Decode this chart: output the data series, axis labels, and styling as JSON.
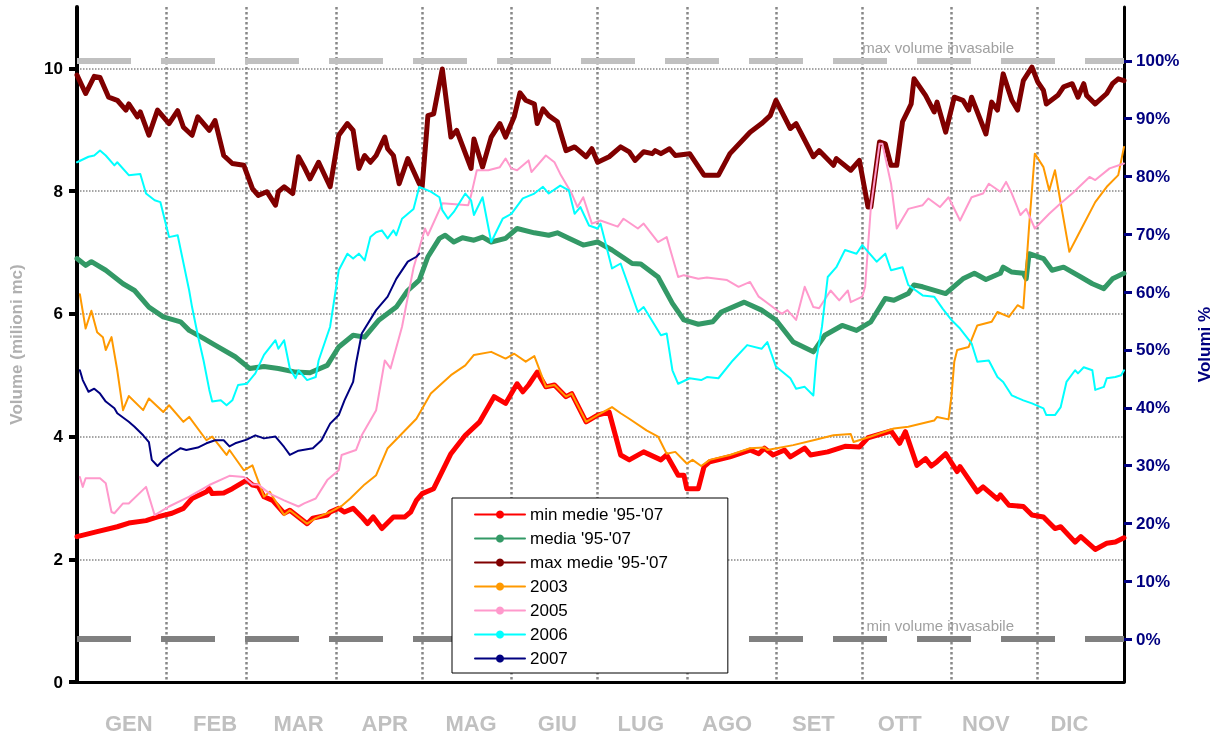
{
  "chart_data": {
    "type": "line",
    "ylabel": "Volume (milioni mc)",
    "y2label": "Volumi %",
    "xlim": [
      "--01-01",
      "--12-31"
    ],
    "xticks": [
      {
        "value": "--01-01",
        "label": null
      },
      {
        "value": "--01-19",
        "label": "GEN"
      },
      {
        "value": "--02-01",
        "label": null
      },
      {
        "value": "--02-18",
        "label": "FEB"
      },
      {
        "value": "--03-01",
        "label": null
      },
      {
        "value": "--03-19",
        "label": "MAR"
      },
      {
        "value": "--04-01",
        "label": null
      },
      {
        "value": "--04-18",
        "label": "APR"
      },
      {
        "value": "--05-01",
        "label": null
      },
      {
        "value": "--05-18",
        "label": "MAG"
      },
      {
        "value": "--06-01",
        "label": null
      },
      {
        "value": "--06-17",
        "label": "GIU"
      },
      {
        "value": "--07-01",
        "label": null
      },
      {
        "value": "--07-16",
        "label": "LUG"
      },
      {
        "value": "--08-01",
        "label": null
      },
      {
        "value": "--08-15",
        "label": "AGO"
      },
      {
        "value": "--09-01",
        "label": null
      },
      {
        "value": "--09-14",
        "label": "SET"
      },
      {
        "value": "--10-01",
        "label": null
      },
      {
        "value": "--10-14",
        "label": "OTT"
      },
      {
        "value": "--11-01",
        "label": null
      },
      {
        "value": "--11-13",
        "label": "NOV"
      },
      {
        "value": "--12-01",
        "label": null
      },
      {
        "value": "--12-12",
        "label": "DIC"
      },
      {
        "value": "--12-31",
        "label": null
      }
    ],
    "ylim": [
      0,
      11
    ],
    "yticks": [
      0,
      2,
      4,
      6,
      8,
      10
    ],
    "y2lim": [
      -7.4,
      109.3
    ],
    "y2ticks": [
      {
        "value": 0,
        "label": "0%"
      },
      {
        "value": 10,
        "label": "10%"
      },
      {
        "value": 20,
        "label": "20%"
      },
      {
        "value": 30,
        "label": "30%"
      },
      {
        "value": 40,
        "label": "40%"
      },
      {
        "value": 50,
        "label": "50%"
      },
      {
        "value": 60,
        "label": "60%"
      },
      {
        "value": 70,
        "label": "70%"
      },
      {
        "value": 80,
        "label": "80%"
      },
      {
        "value": 90,
        "label": "90%"
      },
      {
        "value": 100,
        "label": "100%"
      }
    ],
    "ref_lines": [
      {
        "axis": "y2",
        "value": 100,
        "label": "max volume invasabile",
        "color": "#c0c0c0",
        "line_style": "dashed"
      },
      {
        "axis": "y2",
        "value": 0,
        "label": "min volume invasabile",
        "color": "#808080",
        "line_style": "dashed"
      }
    ],
    "grid": true,
    "legend": "bottom",
    "marker": "none",
    "line_style": "solid",
    "series": [
      {
        "name": "min medie '95-'07",
        "color": "#ff0000",
        "x": [
          "--01-01",
          "--01-08",
          "--01-15",
          "--01-19",
          "--01-25",
          "--01-29",
          "--02-03",
          "--02-07",
          "--02-10",
          "--02-15",
          "--02-16",
          "--02-17",
          "--02-21",
          "--02-24",
          "--03-01",
          "--03-03",
          "--03-05",
          "--03-07",
          "--03-10",
          "--03-14",
          "--03-16",
          "--03-19",
          "--03-22",
          "--03-24",
          "--03-29",
          "--03-30",
          "--04-02",
          "--04-04",
          "--04-07",
          "--04-10",
          "--04-12",
          "--04-14",
          "--04-17",
          "--04-21",
          "--04-25",
          "--04-27",
          "--04-29",
          "--05-01",
          "--05-05",
          "--05-11",
          "--05-16",
          "--05-21",
          "--05-26",
          "--05-30",
          "--06-03",
          "--06-05",
          "--06-07",
          "--06-10",
          "--06-13",
          "--06-16",
          "--06-20",
          "--06-22",
          "--06-27",
          "--07-01",
          "--07-05",
          "--07-09",
          "--07-12",
          "--07-17",
          "--07-23",
          "--07-25",
          "--07-29",
          "--07-31",
          "--08-01",
          "--08-05",
          "--08-07",
          "--08-09",
          "--08-16",
          "--08-23",
          "--08-26",
          "--08-28",
          "--08-31",
          "--09-04",
          "--09-06",
          "--09-11",
          "--09-13",
          "--09-19",
          "--09-25",
          "--09-30",
          "--10-03",
          "--10-11",
          "--10-14",
          "--10-16",
          "--10-20",
          "--10-23",
          "--10-25",
          "--10-27",
          "--10-30",
          "--11-03",
          "--11-04",
          "--11-10",
          "--11-12",
          "--11-17",
          "--11-18",
          "--11-21",
          "--11-26",
          "--11-29",
          "--12-03",
          "--12-07",
          "--12-09",
          "--12-14",
          "--12-16",
          "--12-21",
          "--12-25",
          "--12-28",
          "--12-31"
        ],
        "values": [
          2.37,
          2.45,
          2.53,
          2.59,
          2.63,
          2.69,
          2.75,
          2.83,
          2.99,
          3.1,
          3.15,
          3.07,
          3.08,
          3.15,
          3.29,
          3.21,
          3.19,
          3.02,
          2.96,
          2.75,
          2.8,
          2.69,
          2.58,
          2.67,
          2.72,
          2.77,
          2.83,
          2.77,
          2.83,
          2.69,
          2.58,
          2.69,
          2.5,
          2.69,
          2.69,
          2.77,
          2.96,
          3.07,
          3.15,
          3.72,
          4.02,
          4.24,
          4.65,
          4.54,
          4.86,
          4.73,
          4.84,
          5.05,
          4.81,
          4.84,
          4.65,
          4.7,
          4.24,
          4.35,
          4.4,
          3.7,
          3.62,
          3.75,
          3.62,
          3.7,
          3.37,
          3.37,
          3.15,
          3.15,
          3.51,
          3.59,
          3.67,
          3.78,
          3.72,
          3.81,
          3.7,
          3.78,
          3.67,
          3.81,
          3.7,
          3.75,
          3.84,
          3.83,
          3.98,
          4.09,
          3.89,
          4.08,
          3.53,
          3.64,
          3.52,
          3.59,
          3.72,
          3.43,
          3.51,
          3.1,
          3.18,
          2.98,
          3.05,
          2.88,
          2.86,
          2.72,
          2.69,
          2.5,
          2.53,
          2.28,
          2.37,
          2.16,
          2.26,
          2.28,
          2.35
        ]
      },
      {
        "name": "media '95-'07",
        "color": "#339966",
        "x": [
          "--01-01",
          "--01-04",
          "--01-06",
          "--01-11",
          "--01-17",
          "--01-21",
          "--01-26",
          "--01-31",
          "--02-06",
          "--02-09",
          "--02-14",
          "--02-18",
          "--02-25",
          "--03-02",
          "--03-07",
          "--03-12",
          "--03-18",
          "--03-23",
          "--03-29",
          "--04-02",
          "--04-07",
          "--04-11",
          "--04-16",
          "--04-22",
          "--04-26",
          "--04-30",
          "--05-03",
          "--05-07",
          "--05-09",
          "--05-12",
          "--05-15",
          "--05-19",
          "--05-22",
          "--05-25",
          "--05-30",
          "--06-03",
          "--06-09",
          "--06-14",
          "--06-17",
          "--06-21",
          "--06-26",
          "--07-01",
          "--07-06",
          "--07-13",
          "--07-16",
          "--07-22",
          "--07-27",
          "--07-31",
          "--08-05",
          "--08-10",
          "--08-13",
          "--08-21",
          "--08-27",
          "--09-01",
          "--09-07",
          "--09-14",
          "--09-18",
          "--09-24",
          "--09-29",
          "--10-04",
          "--10-09",
          "--10-12",
          "--10-17",
          "--10-19",
          "--10-22",
          "--10-30",
          "--11-05",
          "--11-09",
          "--11-13",
          "--11-18",
          "--11-19",
          "--11-22",
          "--11-26",
          "--11-27",
          "--11-28",
          "--12-03",
          "--12-06",
          "--12-10",
          "--12-16",
          "--12-20",
          "--12-24",
          "--12-27",
          "--12-31"
        ],
        "values": [
          6.9,
          6.79,
          6.85,
          6.71,
          6.49,
          6.38,
          6.11,
          5.95,
          5.87,
          5.73,
          5.6,
          5.49,
          5.3,
          5.11,
          5.14,
          5.11,
          5.05,
          5.04,
          5.16,
          5.46,
          5.65,
          5.62,
          5.9,
          6.11,
          6.38,
          6.55,
          6.93,
          7.23,
          7.28,
          7.17,
          7.24,
          7.2,
          7.25,
          7.17,
          7.23,
          7.39,
          7.32,
          7.28,
          7.32,
          7.23,
          7.12,
          7.17,
          7.04,
          6.82,
          6.81,
          6.6,
          6.17,
          5.9,
          5.83,
          5.87,
          6.03,
          6.19,
          6.06,
          5.9,
          5.54,
          5.38,
          5.65,
          5.81,
          5.73,
          5.87,
          6.25,
          6.22,
          6.33,
          6.47,
          6.44,
          6.33,
          6.57,
          6.66,
          6.56,
          6.66,
          6.76,
          6.68,
          6.66,
          6.57,
          6.98,
          6.9,
          6.71,
          6.76,
          6.6,
          6.49,
          6.41,
          6.57,
          6.66
        ]
      },
      {
        "name": "max medie '95-'07",
        "color": "#800000",
        "x": [
          "--01-01",
          "--01-04",
          "--01-07",
          "--01-09",
          "--01-12",
          "--01-15",
          "--01-18",
          "--01-19",
          "--01-22",
          "--01-23",
          "--01-26",
          "--01-29",
          "--02-02",
          "--02-05",
          "--02-07",
          "--02-10",
          "--02-12",
          "--02-16",
          "--02-18",
          "--02-21",
          "--02-24",
          "--02-28",
          "--03-03",
          "--03-05",
          "--03-08",
          "--03-11",
          "--03-12",
          "--03-14",
          "--03-17",
          "--03-19",
          "--03-21",
          "--03-23",
          "--03-26",
          "--03-30",
          "--04-02",
          "--04-05",
          "--04-07",
          "--04-09",
          "--04-11",
          "--04-13",
          "--04-15",
          "--04-18",
          "--04-19",
          "--04-21",
          "--04-23",
          "--04-26",
          "--04-30",
          "--05-01",
          "--05-03",
          "--05-05",
          "--05-08",
          "--05-11",
          "--05-13",
          "--05-18",
          "--05-19",
          "--05-22",
          "--05-25",
          "--05-28",
          "--05-30",
          "--06-02",
          "--06-04",
          "--06-06",
          "--06-09",
          "--06-10",
          "--06-12",
          "--06-14",
          "--06-17",
          "--06-20",
          "--06-23",
          "--06-27",
          "--06-29",
          "--07-01",
          "--07-05",
          "--07-09",
          "--07-12",
          "--07-14",
          "--07-17",
          "--07-20",
          "--07-21",
          "--07-23",
          "--07-26",
          "--07-28",
          "--08-02",
          "--08-07",
          "--08-10",
          "--08-12",
          "--08-16",
          "--08-23",
          "--08-27",
          "--08-30",
          "--09-01",
          "--09-06",
          "--09-08",
          "--09-14",
          "--09-16",
          "--09-21",
          "--09-22",
          "--09-27",
          "--09-30",
          "--10-03",
          "--10-04",
          "--10-07",
          "--10-09",
          "--10-11",
          "--10-13",
          "--10-15",
          "--10-17",
          "--10-18",
          "--10-19",
          "--10-23",
          "--10-26",
          "--10-27",
          "--10-30",
          "--11-02",
          "--11-05",
          "--11-07",
          "--11-08",
          "--11-13",
          "--11-15",
          "--11-17",
          "--11-19",
          "--11-22",
          "--11-24",
          "--11-26",
          "--11-29",
          "--12-01",
          "--12-03",
          "--12-04",
          "--12-08",
          "--12-10",
          "--12-13",
          "--12-15",
          "--12-17",
          "--12-18",
          "--12-21",
          "--12-25",
          "--12-27",
          "--12-29",
          "--12-31"
        ],
        "values": [
          9.89,
          9.59,
          9.87,
          9.85,
          9.53,
          9.48,
          9.32,
          9.42,
          9.21,
          9.29,
          8.91,
          9.32,
          9.1,
          9.31,
          9.04,
          8.91,
          9.21,
          8.99,
          9.15,
          8.58,
          8.45,
          8.42,
          8.04,
          7.93,
          7.99,
          7.77,
          7.99,
          8.07,
          7.96,
          8.56,
          8.39,
          8.2,
          8.47,
          8.07,
          8.91,
          9.1,
          8.99,
          8.37,
          8.58,
          8.47,
          8.58,
          8.88,
          8.69,
          8.58,
          8.12,
          8.53,
          8.12,
          8.07,
          9.23,
          9.26,
          9.99,
          8.88,
          8.99,
          8.37,
          8.85,
          8.39,
          8.88,
          9.1,
          8.88,
          9.21,
          9.6,
          9.48,
          9.42,
          9.1,
          9.34,
          9.23,
          9.13,
          8.66,
          8.72,
          8.56,
          8.69,
          8.47,
          8.56,
          8.72,
          8.64,
          8.5,
          8.64,
          8.61,
          8.66,
          8.61,
          8.69,
          8.58,
          8.61,
          8.26,
          8.26,
          8.26,
          8.61,
          8.96,
          9.1,
          9.23,
          9.48,
          9.02,
          9.1,
          8.56,
          8.66,
          8.42,
          8.53,
          8.34,
          8.5,
          7.74,
          7.74,
          8.8,
          8.77,
          8.42,
          8.42,
          9.13,
          9.32,
          9.42,
          9.83,
          9.56,
          9.29,
          9.45,
          8.96,
          9.53,
          9.48,
          9.32,
          9.53,
          8.93,
          9.45,
          9.32,
          9.91,
          9.48,
          9.32,
          9.8,
          10.02,
          9.78,
          9.64,
          9.42,
          9.56,
          9.7,
          9.75,
          9.53,
          9.75,
          9.56,
          9.42,
          9.59,
          9.75,
          9.83,
          9.8
        ]
      },
      {
        "name": "2003",
        "color": "#ff9900",
        "x": [
          "--01-02",
          "--01-04",
          "--01-06",
          "--01-08",
          "--01-10",
          "--01-11",
          "--01-13",
          "--01-15",
          "--01-17",
          "--01-19",
          "--01-24",
          "--01-26",
          "--01-31",
          "--02-02",
          "--02-07",
          "--02-09",
          "--02-15",
          "--02-17",
          "--02-22",
          "--02-23",
          "--02-28",
          "--03-03",
          "--03-07",
          "--03-09",
          "--03-14",
          "--03-16",
          "--03-22",
          "--03-25",
          "--03-30",
          "--04-03",
          "--04-06",
          "--04-11",
          "--04-15",
          "--04-19",
          "--04-24",
          "--04-29",
          "--05-04",
          "--05-11",
          "--05-16",
          "--05-19",
          "--05-25",
          "--05-30",
          "--06-02",
          "--06-06",
          "--06-09",
          "--06-10",
          "--06-13",
          "--06-16",
          "--06-20",
          "--06-22",
          "--06-27",
          "--07-01",
          "--07-06",
          "--07-09",
          "--07-12",
          "--07-18",
          "--07-22",
          "--07-25",
          "--07-28",
          "--08-01",
          "--08-03",
          "--08-06",
          "--08-09",
          "--08-16",
          "--08-23",
          "--08-28",
          "--08-29",
          "--09-07",
          "--09-14",
          "--09-21",
          "--09-27",
          "--09-28",
          "--10-04",
          "--10-12",
          "--10-17",
          "--10-26",
          "--10-27",
          "--10-31",
          "--11-01",
          "--11-02",
          "--11-03",
          "--11-07",
          "--11-10",
          "--11-15",
          "--11-17",
          "--11-21",
          "--11-24",
          "--11-26",
          "--11-28",
          "--11-30",
          "--12-03",
          "--12-05",
          "--12-07",
          "--12-12",
          "--12-15",
          "--12-21",
          "--12-25",
          "--12-29",
          "--12-31"
        ],
        "values": [
          6.32,
          5.76,
          6.05,
          5.7,
          5.62,
          5.41,
          5.62,
          5.08,
          4.43,
          4.66,
          4.43,
          4.62,
          4.4,
          4.51,
          4.24,
          4.32,
          3.94,
          4.0,
          3.7,
          3.78,
          3.45,
          3.53,
          3.02,
          3.1,
          2.72,
          2.8,
          2.58,
          2.67,
          2.77,
          2.87,
          2.99,
          3.22,
          3.37,
          3.81,
          4.05,
          4.29,
          4.7,
          5.0,
          5.16,
          5.33,
          5.38,
          5.27,
          5.35,
          5.22,
          5.31,
          5.19,
          4.81,
          4.84,
          4.65,
          4.7,
          4.24,
          4.35,
          4.48,
          4.38,
          4.29,
          4.1,
          4.0,
          3.72,
          3.75,
          3.56,
          3.62,
          3.52,
          3.62,
          3.7,
          3.81,
          3.82,
          3.78,
          3.86,
          3.94,
          4.02,
          4.04,
          3.91,
          4.0,
          4.13,
          4.16,
          4.26,
          4.32,
          4.28,
          4.65,
          5.22,
          5.41,
          5.46,
          5.81,
          5.87,
          6.03,
          5.95,
          6.14,
          6.09,
          7.42,
          8.61,
          8.39,
          8.01,
          8.34,
          7.01,
          7.28,
          7.82,
          8.07,
          8.26,
          8.72
        ]
      },
      {
        "name": "2005",
        "color": "#ff99cc",
        "x": [
          "--01-02",
          "--01-03",
          "--01-04",
          "--01-09",
          "--01-11",
          "--01-13",
          "--01-14",
          "--01-17",
          "--01-19",
          "--01-25",
          "--01-28",
          "--02-02",
          "--02-09",
          "--02-16",
          "--02-23",
          "--02-28",
          "--03-03",
          "--03-05",
          "--03-09",
          "--03-14",
          "--03-19",
          "--03-21",
          "--03-25",
          "--03-29",
          "--04-02",
          "--04-03",
          "--04-08",
          "--04-10",
          "--04-15",
          "--04-18",
          "--04-20",
          "--04-24",
          "--04-28",
          "--05-02",
          "--05-03",
          "--05-08",
          "--05-17",
          "--05-18",
          "--05-20",
          "--05-24",
          "--05-28",
          "--05-30",
          "--06-01",
          "--06-03",
          "--06-07",
          "--06-08",
          "--06-13",
          "--06-16",
          "--06-18",
          "--06-22",
          "--06-24",
          "--06-26",
          "--06-29",
          "--07-02",
          "--07-08",
          "--07-10",
          "--07-15",
          "--07-17",
          "--07-22",
          "--07-25",
          "--07-29",
          "--07-31",
          "--08-05",
          "--08-08",
          "--08-15",
          "--08-19",
          "--08-23",
          "--08-26",
          "--09-03",
          "--09-05",
          "--09-08",
          "--09-11",
          "--09-14",
          "--09-16",
          "--09-20",
          "--09-23",
          "--09-26",
          "--09-27",
          "--10-01",
          "--10-02",
          "--10-04",
          "--10-07",
          "--10-08",
          "--10-11",
          "--10-13",
          "--10-15",
          "--10-17",
          "--10-22",
          "--10-24",
          "--10-28",
          "--10-31",
          "--11-04",
          "--11-08",
          "--11-12",
          "--11-14",
          "--11-18",
          "--11-20",
          "--11-22",
          "--11-25",
          "--11-27",
          "--11-30",
          "--12-05",
          "--12-09",
          "--12-13",
          "--12-19",
          "--12-21",
          "--12-26",
          "--12-31"
        ],
        "values": [
          3.34,
          3.18,
          3.32,
          3.32,
          3.24,
          2.77,
          2.75,
          2.91,
          2.91,
          3.18,
          2.72,
          2.86,
          3.02,
          3.21,
          3.36,
          3.34,
          3.22,
          3.22,
          3.07,
          2.96,
          2.86,
          2.91,
          2.99,
          3.29,
          3.45,
          3.7,
          3.78,
          4.02,
          4.43,
          5.24,
          5.11,
          5.79,
          6.75,
          7.39,
          7.28,
          7.8,
          7.77,
          7.93,
          8.34,
          8.34,
          8.39,
          8.53,
          8.37,
          8.34,
          8.5,
          8.31,
          8.58,
          8.47,
          8.28,
          7.96,
          7.74,
          7.9,
          7.47,
          7.52,
          7.42,
          7.55,
          7.39,
          7.47,
          7.17,
          7.25,
          6.6,
          6.63,
          6.57,
          6.59,
          6.55,
          6.44,
          6.52,
          6.28,
          6.0,
          6.06,
          5.9,
          6.44,
          6.11,
          6.09,
          6.38,
          6.22,
          6.38,
          6.19,
          6.28,
          6.44,
          7.74,
          8.77,
          8.77,
          8.12,
          7.39,
          7.55,
          7.71,
          7.77,
          7.88,
          7.74,
          7.9,
          7.52,
          7.9,
          7.96,
          8.12,
          7.99,
          8.15,
          7.96,
          7.61,
          7.71,
          7.39,
          7.63,
          7.8,
          7.96,
          8.23,
          8.18,
          8.37,
          8.45
        ]
      },
      {
        "name": "2006",
        "color": "#00ffff",
        "x": [
          "--01-01",
          "--01-05",
          "--01-07",
          "--01-09",
          "--01-11",
          "--01-14",
          "--01-15",
          "--01-19",
          "--01-23",
          "--01-25",
          "--01-28",
          "--01-30",
          "--02-02",
          "--02-05",
          "--02-09",
          "--02-10",
          "--02-12",
          "--02-14",
          "--02-16",
          "--02-17",
          "--02-20",
          "--02-22",
          "--02-24",
          "--02-26",
          "--03-01",
          "--03-04",
          "--03-07",
          "--03-11",
          "--03-12",
          "--03-14",
          "--03-16",
          "--03-18",
          "--03-19",
          "--03-22",
          "--03-25",
          "--03-26",
          "--03-30",
          "--04-02",
          "--04-05",
          "--04-07",
          "--04-09",
          "--04-11",
          "--04-13",
          "--04-15",
          "--04-17",
          "--04-19",
          "--04-21",
          "--04-22",
          "--04-24",
          "--04-28",
          "--04-30",
          "--05-04",
          "--05-07",
          "--05-08",
          "--05-10",
          "--05-12",
          "--05-16",
          "--05-18",
          "--05-19",
          "--05-22",
          "--05-25",
          "--05-29",
          "--06-01",
          "--06-05",
          "--06-09",
          "--06-12",
          "--06-14",
          "--06-18",
          "--06-21",
          "--06-23",
          "--06-25",
          "--06-28",
          "--07-01",
          "--07-02",
          "--07-06",
          "--07-09",
          "--07-15",
          "--07-17",
          "--07-23",
          "--07-25",
          "--07-27",
          "--07-29",
          "--08-02",
          "--08-06",
          "--08-08",
          "--08-12",
          "--08-17",
          "--08-22",
          "--08-27",
          "--08-29",
          "--09-01",
          "--09-06",
          "--09-08",
          "--09-11",
          "--09-14",
          "--09-15",
          "--09-17",
          "--09-19",
          "--09-22",
          "--09-25",
          "--09-29",
          "--10-01",
          "--10-06",
          "--10-09",
          "--10-11",
          "--10-15",
          "--10-17",
          "--10-22",
          "--10-26",
          "--10-29",
          "--11-01",
          "--11-04",
          "--11-08",
          "--11-10",
          "--11-14",
          "--11-17",
          "--11-19",
          "--11-22",
          "--11-26",
          "--11-29",
          "--12-03",
          "--12-04",
          "--12-07",
          "--12-09",
          "--12-11",
          "--12-14",
          "--12-15",
          "--12-17",
          "--12-20",
          "--12-21",
          "--12-24",
          "--12-25",
          "--12-28",
          "--12-30",
          "--12-31"
        ],
        "values": [
          8.47,
          8.56,
          8.58,
          8.66,
          8.58,
          8.42,
          8.47,
          8.26,
          8.28,
          7.96,
          7.85,
          7.82,
          7.25,
          7.28,
          6.38,
          6.11,
          5.65,
          5.24,
          4.76,
          4.57,
          4.59,
          4.51,
          4.59,
          4.84,
          4.86,
          5.03,
          5.33,
          5.57,
          5.43,
          5.57,
          5.11,
          4.95,
          5.08,
          4.92,
          4.97,
          5.24,
          5.79,
          6.71,
          6.98,
          6.9,
          6.98,
          6.87,
          7.25,
          7.33,
          7.36,
          7.23,
          7.36,
          7.28,
          7.55,
          7.71,
          8.07,
          7.99,
          7.9,
          7.69,
          7.55,
          7.66,
          7.96,
          7.85,
          7.61,
          7.9,
          7.17,
          7.55,
          7.63,
          7.88,
          7.96,
          8.07,
          7.96,
          8.09,
          8.01,
          7.63,
          7.74,
          7.44,
          7.39,
          7.47,
          6.74,
          6.82,
          6.03,
          6.11,
          5.65,
          5.68,
          5.08,
          4.86,
          4.95,
          4.92,
          4.97,
          4.95,
          5.24,
          5.49,
          5.43,
          5.54,
          5.14,
          4.95,
          4.78,
          4.81,
          4.67,
          5.24,
          5.79,
          6.6,
          6.76,
          7.04,
          6.98,
          7.12,
          6.85,
          6.98,
          6.71,
          6.76,
          6.47,
          6.3,
          6.28,
          6.08,
          5.9,
          5.76,
          5.52,
          5.22,
          5.24,
          4.97,
          4.89,
          4.67,
          4.59,
          4.54,
          4.46,
          4.35,
          4.35,
          4.48,
          4.89,
          5.08,
          5.03,
          5.13,
          5.08,
          4.76,
          4.81,
          4.95,
          4.97,
          5.0,
          5.08
        ]
      },
      {
        "name": "2007",
        "color": "#000080",
        "x": [
          "--01-02",
          "--01-03",
          "--01-05",
          "--01-07",
          "--01-09",
          "--01-11",
          "--01-14",
          "--01-15",
          "--01-19",
          "--01-21",
          "--01-24",
          "--01-26",
          "--01-27",
          "--01-29",
          "--01-31",
          "--02-03",
          "--02-06",
          "--02-08",
          "--02-12",
          "--02-15",
          "--02-18",
          "--02-21",
          "--02-23",
          "--02-25",
          "--03-01",
          "--03-04",
          "--03-07",
          "--03-11",
          "--03-14",
          "--03-16",
          "--03-19",
          "--03-24",
          "--03-27",
          "--03-30",
          "--04-02",
          "--04-04",
          "--04-07",
          "--04-08",
          "--04-10",
          "--04-15",
          "--04-19",
          "--04-22",
          "--04-26",
          "--04-29",
          "--04-30"
        ],
        "values": [
          5.08,
          4.92,
          4.73,
          4.78,
          4.7,
          4.57,
          4.46,
          4.38,
          4.24,
          4.16,
          4.02,
          3.91,
          3.62,
          3.52,
          3.62,
          3.72,
          3.81,
          3.78,
          3.82,
          3.89,
          3.94,
          3.94,
          3.84,
          3.89,
          3.95,
          4.02,
          3.97,
          4.0,
          3.83,
          3.7,
          3.77,
          3.81,
          3.94,
          4.21,
          4.35,
          4.59,
          4.89,
          5.19,
          5.68,
          6.06,
          6.28,
          6.57,
          6.85,
          6.93,
          6.98
        ]
      }
    ]
  }
}
